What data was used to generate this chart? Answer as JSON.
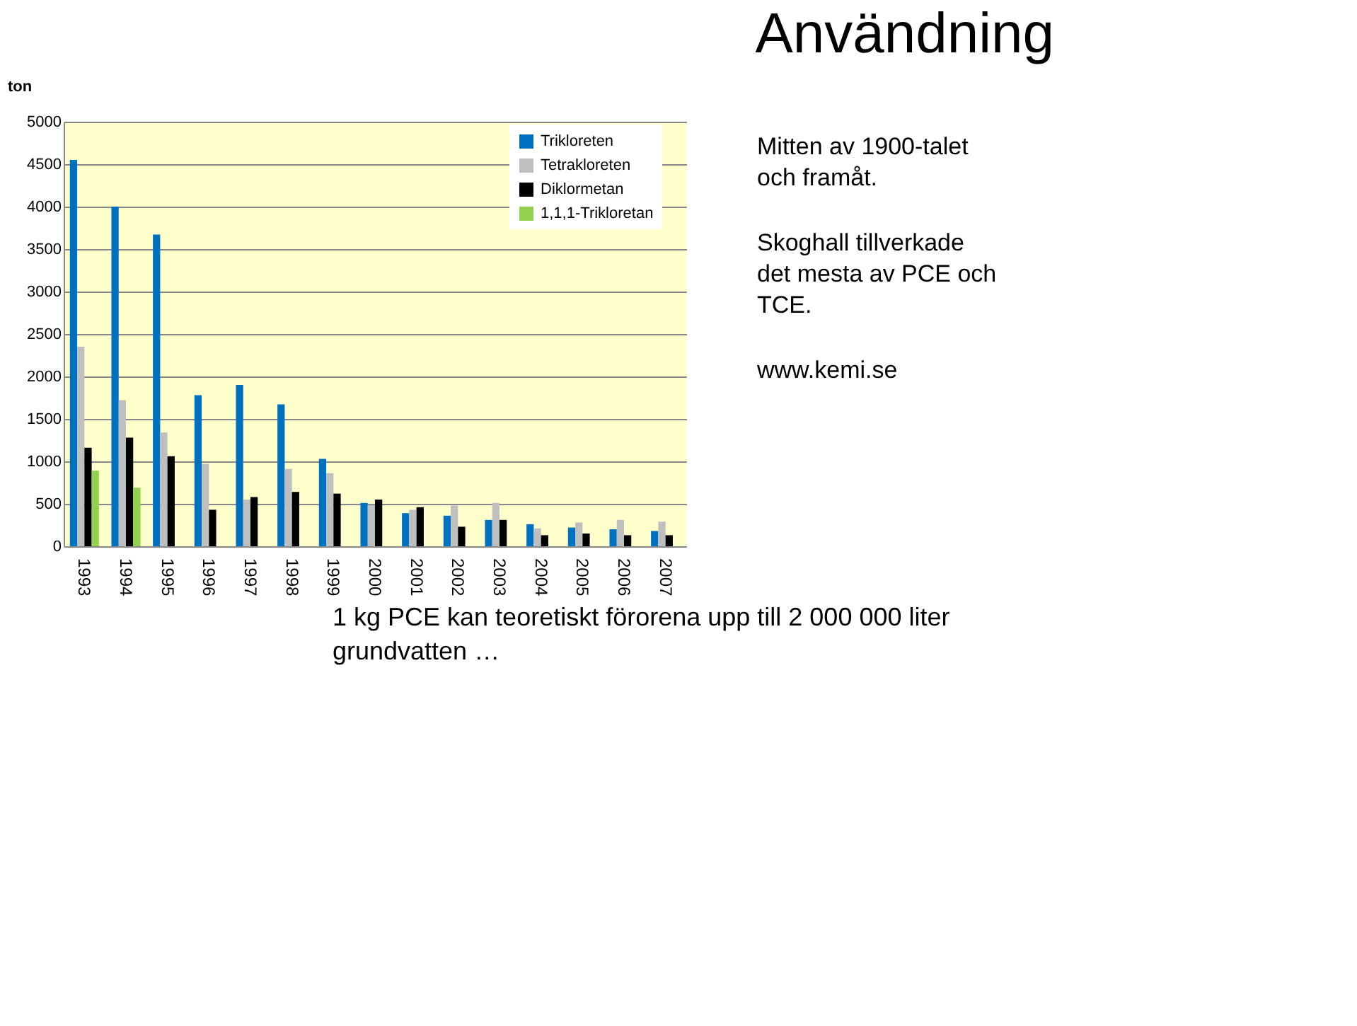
{
  "chart_data": {
    "type": "bar",
    "title": "Användning",
    "ylabel": "ton",
    "categories": [
      "1993",
      "1994",
      "1995",
      "1996",
      "1997",
      "1998",
      "1999",
      "2000",
      "2001",
      "2002",
      "2003",
      "2004",
      "2005",
      "2006",
      "2007"
    ],
    "series": [
      {
        "name": "Trikloreten",
        "color": "#0070c0",
        "values": [
          4550,
          4000,
          3670,
          1780,
          1900,
          1670,
          1030,
          510,
          390,
          360,
          310,
          260,
          220,
          200,
          180
        ]
      },
      {
        "name": "Tetrakloreten",
        "color": "#bfbfbf",
        "values": [
          2350,
          1720,
          1340,
          970,
          550,
          910,
          860,
          485,
          430,
          480,
          510,
          210,
          280,
          310,
          290
        ]
      },
      {
        "name": "Diklormetan",
        "color": "#000000",
        "values": [
          1160,
          1280,
          1060,
          430,
          580,
          640,
          620,
          550,
          460,
          230,
          310,
          130,
          150,
          130,
          130
        ]
      },
      {
        "name": "1,1,1-Trikloretan",
        "color": "#92d050",
        "values": [
          890,
          690,
          null,
          null,
          null,
          null,
          null,
          null,
          null,
          null,
          null,
          null,
          null,
          null,
          null
        ]
      }
    ],
    "ylim": [
      0,
      5000
    ],
    "yticks": [
      0,
      500,
      1000,
      1500,
      2000,
      2500,
      3000,
      3500,
      4000,
      4500,
      5000
    ],
    "grid": "y",
    "legend": "top right",
    "annotations": [
      "Mitten av 1900-talet och framåt.",
      "Skoghall tillverkade det mesta av PCE och TCE.",
      "www.kemi.se",
      "1 kg PCE kan teoretiskt förorena upp till 2 000 000 liter grundvatten …"
    ]
  }
}
